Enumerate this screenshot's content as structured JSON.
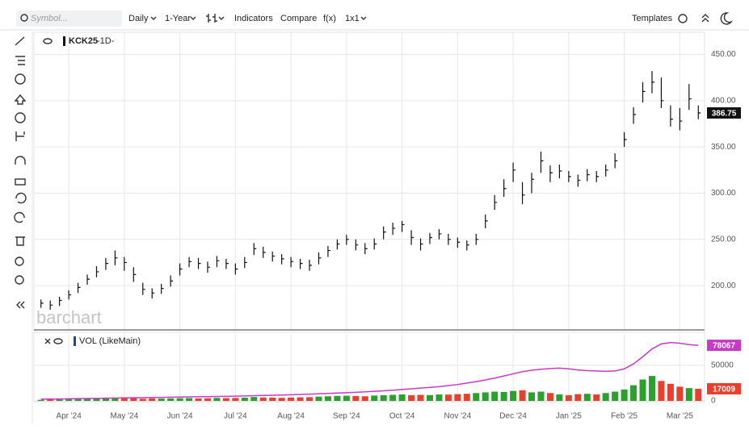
{
  "toolbar": {
    "symbol_placeholder": "Symbol...",
    "period": "Daily",
    "range": "1-Year",
    "indicators": "Indicators",
    "compare": "Compare",
    "function": "f(x)",
    "layout": "1x1",
    "templates": "Templates"
  },
  "chart_data": [
    {
      "type": "ohlc",
      "symbol": "KCK25",
      "interval": "-1D-",
      "watermark": "barchart",
      "color": "#111111",
      "high": [
        185,
        184,
        188,
        195,
        203,
        212,
        221,
        230,
        238,
        231,
        220,
        203,
        197,
        202,
        211,
        224,
        231,
        230,
        226,
        232,
        229,
        224,
        231,
        246,
        242,
        237,
        234,
        231,
        229,
        228,
        236,
        243,
        250,
        255,
        250,
        246,
        251,
        264,
        268,
        270,
        260,
        251,
        257,
        261,
        256,
        252,
        249,
        256,
        277,
        298,
        315,
        333,
        312,
        322,
        345,
        330,
        331,
        324,
        320,
        326,
        324,
        331,
        343,
        366,
        393,
        420,
        432,
        425,
        395,
        392,
        418,
        395
      ],
      "low": [
        176,
        174,
        178,
        185,
        192,
        201,
        209,
        217,
        222,
        216,
        204,
        190,
        186,
        191,
        199,
        211,
        220,
        218,
        214,
        220,
        218,
        212,
        219,
        233,
        230,
        226,
        223,
        220,
        218,
        216,
        223,
        231,
        239,
        244,
        238,
        234,
        239,
        250,
        255,
        258,
        244,
        238,
        245,
        250,
        244,
        241,
        238,
        244,
        262,
        282,
        296,
        312,
        288,
        300,
        322,
        312,
        316,
        312,
        307,
        313,
        312,
        318,
        327,
        350,
        375,
        398,
        408,
        392,
        372,
        368,
        390,
        380
      ],
      "close": [
        181,
        179,
        184,
        190,
        198,
        207,
        215,
        224,
        230,
        225,
        212,
        196,
        192,
        197,
        205,
        218,
        226,
        224,
        220,
        227,
        224,
        218,
        225,
        240,
        236,
        232,
        229,
        226,
        224,
        222,
        230,
        238,
        245,
        250,
        244,
        240,
        245,
        258,
        262,
        266,
        252,
        245,
        252,
        256,
        250,
        247,
        244,
        250,
        270,
        290,
        305,
        325,
        298,
        315,
        335,
        322,
        324,
        318,
        314,
        320,
        318,
        325,
        335,
        358,
        385,
        410,
        420,
        400,
        380,
        378,
        402,
        386.75
      ],
      "ylim": [
        153,
        474
      ],
      "yticks": [
        {
          "value": 200,
          "label": "200.00"
        },
        {
          "value": 250,
          "label": "250.00"
        },
        {
          "value": 300,
          "label": "300.00"
        },
        {
          "value": 350,
          "label": "350.00"
        },
        {
          "value": 400,
          "label": "400.00"
        },
        {
          "value": 450,
          "label": "450.00"
        }
      ],
      "grid": true
    },
    {
      "type": "bar",
      "title": "VOL (LikeMain)",
      "categories": [
        null,
        null,
        null,
        "Apr '24",
        null,
        null,
        null,
        null,
        null,
        "May '24",
        null,
        null,
        null,
        null,
        null,
        "Jun '24",
        null,
        null,
        null,
        null,
        null,
        "Jul '24",
        null,
        null,
        null,
        null,
        null,
        "Aug '24",
        null,
        null,
        null,
        null,
        null,
        "Sep '24",
        null,
        null,
        null,
        null,
        null,
        "Oct '24",
        null,
        null,
        null,
        null,
        null,
        "Nov '24",
        null,
        null,
        null,
        null,
        null,
        "Dec '24",
        null,
        null,
        null,
        null,
        null,
        "Jan '25",
        null,
        null,
        null,
        null,
        null,
        "Feb '25",
        null,
        null,
        null,
        null,
        null,
        "Mar '25",
        null,
        null
      ],
      "volume": {
        "up_color": "#2ca02c",
        "down_color": "#e8402c",
        "values": [
          1500,
          1800,
          2000,
          2500,
          3000,
          2800,
          3200,
          4000,
          3500,
          3800,
          4200,
          3000,
          3500,
          3300,
          3600,
          3800,
          4000,
          3500,
          3700,
          4200,
          3900,
          4100,
          4500,
          5500,
          4800,
          4600,
          4300,
          4700,
          5000,
          5200,
          6000,
          6500,
          7000,
          7200,
          6800,
          6500,
          7500,
          8000,
          8500,
          9000,
          8000,
          8500,
          8200,
          9000,
          8800,
          9500,
          10000,
          11000,
          12000,
          13000,
          12500,
          14000,
          15000,
          12000,
          13000,
          11000,
          9000,
          8000,
          9500,
          10000,
          9000,
          11000,
          13000,
          16000,
          22000,
          30000,
          35000,
          28000,
          24000,
          20000,
          18000,
          17009
        ]
      },
      "open_interest": {
        "color": "#c63ac6",
        "values": [
          2500,
          2600,
          2700,
          3000,
          3200,
          3400,
          3600,
          3800,
          4000,
          4200,
          4400,
          4600,
          4800,
          5000,
          5200,
          5400,
          5600,
          5800,
          6000,
          6200,
          6400,
          6700,
          7000,
          7300,
          7600,
          7900,
          8200,
          8600,
          9000,
          9500,
          10000,
          10500,
          11000,
          11500,
          12000,
          12800,
          13500,
          14200,
          15000,
          16000,
          17000,
          18000,
          19000,
          20000,
          21500,
          23000,
          25000,
          27000,
          29500,
          32000,
          35000,
          38000,
          41000,
          43000,
          44500,
          45500,
          46000,
          45000,
          43500,
          42500,
          42000,
          41500,
          42000,
          45000,
          52000,
          62000,
          73000,
          80000,
          82000,
          81000,
          79000,
          78067
        ]
      },
      "ylim": [
        0,
        94000
      ],
      "yticks": [
        0,
        50000
      ],
      "grid": true
    }
  ]
}
